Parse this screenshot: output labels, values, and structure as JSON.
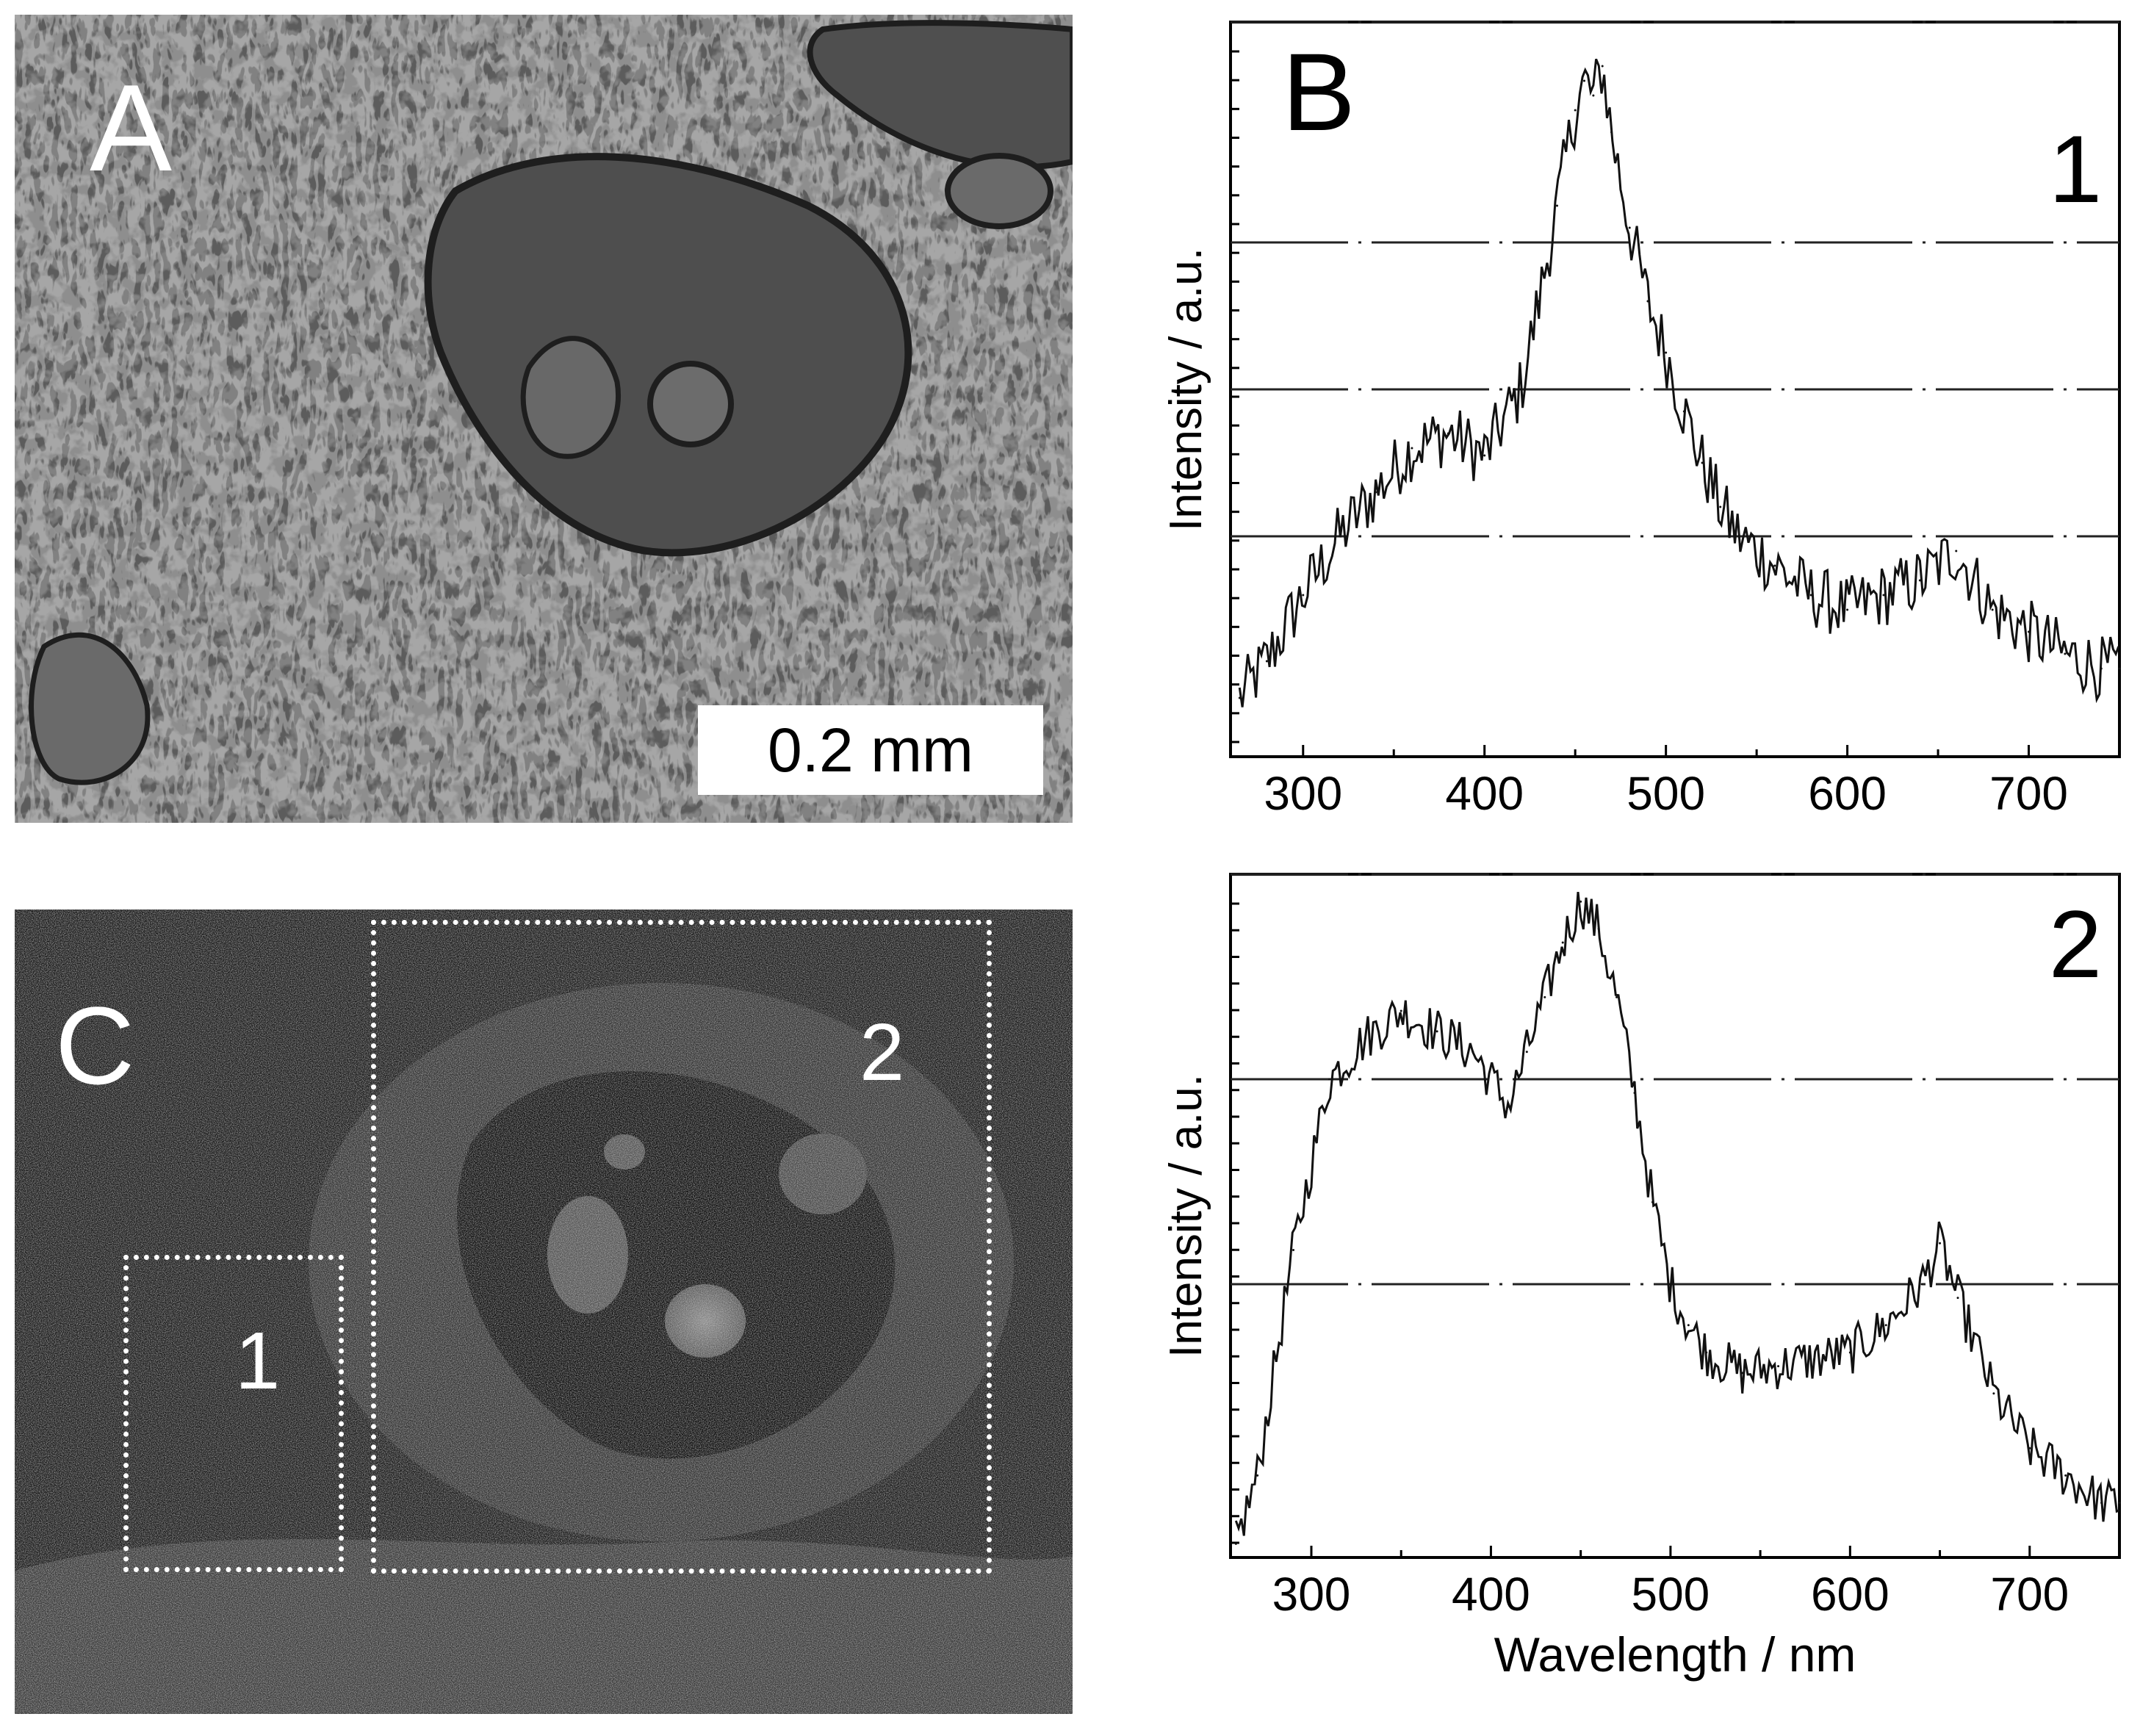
{
  "panel_a": {
    "letter": "A",
    "scale_bar": "0.2 mm",
    "colors": {
      "background": "#5a5a5a",
      "texture": "#2a2a2a",
      "highlight": "#d8d8d8"
    }
  },
  "panel_b_letter": "B",
  "panel_c": {
    "letter": "C",
    "regions": [
      {
        "label": "1"
      },
      {
        "label": "2"
      }
    ],
    "colors": {
      "background": "#1a1a1a",
      "bright": "#9a9a9a"
    }
  },
  "chart_data": [
    {
      "type": "line",
      "label": "1",
      "ylabel": "Intensity / a.u.",
      "xlabel": "",
      "xlim": [
        260,
        750
      ],
      "xticks": [
        300,
        400,
        500,
        600,
        700
      ],
      "ylim": [
        0,
        1
      ],
      "gridlines_y": [
        0.3,
        0.5,
        0.7,
        1.0
      ],
      "x": [
        265,
        280,
        300,
        320,
        340,
        360,
        380,
        400,
        420,
        430,
        440,
        450,
        455,
        460,
        465,
        470,
        480,
        490,
        500,
        510,
        520,
        530,
        540,
        560,
        580,
        600,
        620,
        640,
        660,
        680,
        700,
        720,
        740,
        750
      ],
      "values": [
        0.08,
        0.13,
        0.22,
        0.3,
        0.36,
        0.42,
        0.44,
        0.41,
        0.5,
        0.62,
        0.75,
        0.88,
        0.92,
        0.9,
        0.94,
        0.85,
        0.72,
        0.62,
        0.55,
        0.47,
        0.4,
        0.34,
        0.3,
        0.26,
        0.22,
        0.2,
        0.22,
        0.24,
        0.28,
        0.2,
        0.17,
        0.14,
        0.12,
        0.12
      ]
    },
    {
      "type": "line",
      "label": "2",
      "ylabel": "Intensity / a.u.",
      "xlabel": "Wavelength / nm",
      "xlim": [
        255,
        750
      ],
      "xticks": [
        300,
        400,
        500,
        600,
        700
      ],
      "ylim": [
        0,
        1
      ],
      "gridlines_y": [
        0.4,
        0.7,
        1.0
      ],
      "x": [
        258,
        270,
        290,
        310,
        330,
        350,
        370,
        390,
        410,
        420,
        430,
        440,
        450,
        460,
        470,
        480,
        490,
        500,
        510,
        520,
        540,
        560,
        580,
        600,
        620,
        640,
        650,
        660,
        680,
        700,
        720,
        740,
        750
      ],
      "values": [
        0.02,
        0.12,
        0.45,
        0.7,
        0.76,
        0.8,
        0.77,
        0.74,
        0.66,
        0.74,
        0.82,
        0.9,
        0.96,
        0.92,
        0.82,
        0.68,
        0.52,
        0.4,
        0.34,
        0.3,
        0.27,
        0.28,
        0.29,
        0.3,
        0.34,
        0.4,
        0.46,
        0.38,
        0.24,
        0.16,
        0.12,
        0.08,
        0.08
      ]
    }
  ]
}
